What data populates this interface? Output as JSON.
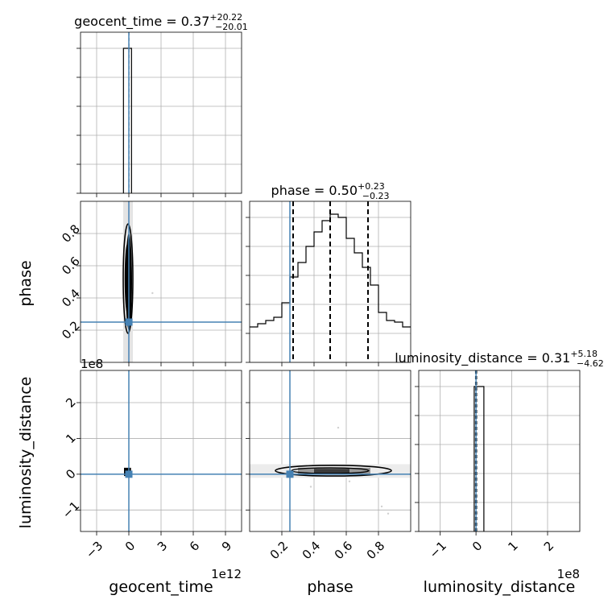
{
  "chart_data": {
    "type": "corner",
    "parameters": [
      "geocent_time",
      "phase",
      "luminosity_distance"
    ],
    "truth": {
      "geocent_time": 0.0,
      "phase": 0.25,
      "luminosity_distance": 0.0
    },
    "truth_color": "#4682b4",
    "titles": [
      {
        "name": "geocent_time",
        "median": "0.37",
        "plus": "+20.22",
        "minus": "−20.01"
      },
      {
        "name": "phase",
        "median": "0.50",
        "plus": "+0.23",
        "minus": "−0.23"
      },
      {
        "name": "luminosity_distance",
        "median": "0.31",
        "plus": "+5.18",
        "minus": "−4.62"
      }
    ],
    "axes": {
      "geocent_time": {
        "range": [
          -4.5,
          10.5
        ],
        "ticks": [
          -3,
          0,
          3,
          6,
          9
        ],
        "tick_labels": [
          "−3",
          "0",
          "3",
          "6",
          "9"
        ],
        "offset_text": "1e12"
      },
      "phase": {
        "range": [
          0.0,
          1.0
        ],
        "ticks": [
          0.2,
          0.4,
          0.6,
          0.8
        ],
        "tick_labels": [
          "0.2",
          "0.4",
          "0.6",
          "0.8"
        ]
      },
      "luminosity_distance": {
        "range": [
          -1.6,
          2.9
        ],
        "ticks": [
          -1,
          0,
          1,
          2
        ],
        "tick_labels": [
          "−1",
          "0",
          "1",
          "2"
        ],
        "offset_text": "1e8"
      }
    },
    "hist_geocent_time": {
      "bins": [
        -0.5,
        0.25
      ],
      "counts": [
        1.0
      ],
      "quantiles": [
        0.0,
        0.004,
        0.008
      ]
    },
    "hist_phase": {
      "bin_edges": [
        0.0,
        0.05,
        0.1,
        0.15,
        0.2,
        0.25,
        0.3,
        0.35,
        0.4,
        0.45,
        0.5,
        0.55,
        0.6,
        0.65,
        0.7,
        0.75,
        0.8,
        0.85,
        0.9,
        0.95,
        1.0
      ],
      "counts": [
        0.22,
        0.24,
        0.26,
        0.28,
        0.37,
        0.53,
        0.62,
        0.72,
        0.81,
        0.88,
        0.92,
        0.9,
        0.77,
        0.68,
        0.59,
        0.48,
        0.31,
        0.26,
        0.25,
        0.22
      ],
      "quantiles": [
        0.27,
        0.5,
        0.735
      ]
    },
    "hist_luminosity_distance": {
      "bins": [
        -0.05,
        0.22
      ],
      "counts": [
        1.0
      ],
      "quantiles": [
        -0.015,
        0.0,
        0.02
      ]
    },
    "grid": true
  }
}
